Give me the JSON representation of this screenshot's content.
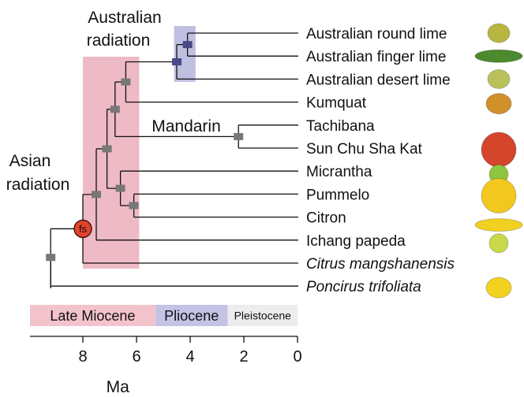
{
  "annotations": {
    "australian_line1": "Australian",
    "australian_line2": "radiation",
    "asian_line1": "Asian",
    "asian_line2": "radiation",
    "mandarin": "Mandarin",
    "fossil_marker": "fs"
  },
  "taxa": [
    {
      "id": "australian-round-lime",
      "label": "Australian round lime",
      "italic": false,
      "fruit_color": "#b7b640",
      "fruit_shape": "round"
    },
    {
      "id": "australian-finger-lime",
      "label": "Australian finger lime",
      "italic": false,
      "fruit_color": "#4d8a2e",
      "fruit_shape": "finger"
    },
    {
      "id": "australian-desert-lime",
      "label": "Australian desert lime",
      "italic": false,
      "fruit_color": "#b9c25a",
      "fruit_shape": "round"
    },
    {
      "id": "kumquat",
      "label": "Kumquat",
      "italic": false,
      "fruit_color": "#d1902a",
      "fruit_shape": "oval"
    },
    {
      "id": "tachibana",
      "label": "Tachibana",
      "italic": false,
      "fruit_color": "",
      "fruit_shape": "none"
    },
    {
      "id": "sun-chu-sha-kat",
      "label": "Sun Chu Sha Kat",
      "italic": false,
      "fruit_color": "#d4452b",
      "fruit_shape": "large"
    },
    {
      "id": "micrantha",
      "label": "Micrantha",
      "italic": false,
      "fruit_color": "#8cc63f",
      "fruit_shape": "small"
    },
    {
      "id": "pummelo",
      "label": "Pummelo",
      "italic": false,
      "fruit_color": "#f2c81e",
      "fruit_shape": "large"
    },
    {
      "id": "citron",
      "label": "Citron",
      "italic": false,
      "fruit_color": "#f0d020",
      "fruit_shape": "finger"
    },
    {
      "id": "ichang-papeda",
      "label": "Ichang papeda",
      "italic": false,
      "fruit_color": "#c8d848",
      "fruit_shape": "small"
    },
    {
      "id": "citrus-mangshanensis",
      "label": "Citrus mangshanensis",
      "italic": true,
      "fruit_color": "",
      "fruit_shape": "none"
    },
    {
      "id": "poncirus-trifoliata",
      "label": "Poncirus trifoliata",
      "italic": true,
      "fruit_color": "#f2d21f",
      "fruit_shape": "oval"
    }
  ],
  "nodes": [
    {
      "id": "root",
      "age_ma": 9.2,
      "children": [
        "poncirus-trifoliata",
        "n_fs"
      ]
    },
    {
      "id": "n_fs",
      "age_ma": 8.0,
      "children": [
        "citrus-mangshanensis",
        "n_ich"
      ],
      "fossil": true
    },
    {
      "id": "n_ich",
      "age_ma": 7.5,
      "children": [
        "ichang-papeda",
        "n_core"
      ]
    },
    {
      "id": "n_core",
      "age_ma": 7.1,
      "children": [
        "n_kum_mand",
        "n_pmc"
      ]
    },
    {
      "id": "n_pmc",
      "age_ma": 6.6,
      "children": [
        "micrantha",
        "n_pc"
      ]
    },
    {
      "id": "n_pc",
      "age_ma": 6.1,
      "children": [
        "pummelo",
        "citron"
      ]
    },
    {
      "id": "n_kum_mand",
      "age_ma": 6.8,
      "children": [
        "n_kum_aus",
        "n_mand"
      ]
    },
    {
      "id": "n_mand",
      "age_ma": 2.2,
      "children": [
        "tachibana",
        "sun-chu-sha-kat"
      ]
    },
    {
      "id": "n_kum_aus",
      "age_ma": 6.4,
      "children": [
        "n_aus",
        "kumquat"
      ]
    },
    {
      "id": "n_aus",
      "age_ma": 4.5,
      "children": [
        "n_aus2",
        "australian-desert-lime"
      ]
    },
    {
      "id": "n_aus2",
      "age_ma": 4.1,
      "children": [
        "australian-round-lime",
        "australian-finger-lime"
      ]
    }
  ],
  "shaded_intervals": [
    {
      "id": "asian",
      "from_ma": 8.0,
      "to_ma": 5.9,
      "color": "#e8a3b1"
    },
    {
      "id": "australian",
      "from_ma": 4.6,
      "to_ma": 3.8,
      "color": "#a9a9d8"
    }
  ],
  "epochs": [
    {
      "id": "late-miocene",
      "label": "Late Miocene",
      "from_ma": 10.0,
      "to_ma": 5.3,
      "color": "#f3c3cb"
    },
    {
      "id": "pliocene",
      "label": "Pliocene",
      "from_ma": 5.3,
      "to_ma": 2.6,
      "color": "#c3c3e6"
    },
    {
      "id": "pleistocene",
      "label": "Pleistocene",
      "from_ma": 2.6,
      "to_ma": 0.0,
      "color": "#ececec"
    }
  ],
  "axis": {
    "label": "Ma",
    "ticks": [
      8,
      6,
      4,
      2,
      0
    ],
    "range_ma": [
      10.0,
      0.0
    ]
  }
}
